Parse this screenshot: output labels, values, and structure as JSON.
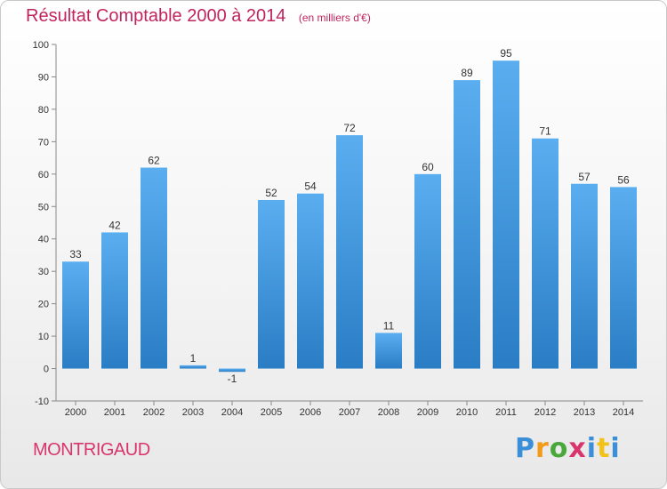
{
  "header": {
    "title": "Résultat Comptable 2000 à 2014",
    "subtitle": "(en milliers d'€)"
  },
  "footer": {
    "commune": "MONTRIGAUD",
    "brand": "Proxiti"
  },
  "colors": {
    "title": "#c0245c",
    "bar_light": "#5aaef0",
    "bar_dark": "#2a7dc4"
  },
  "chart_data": {
    "type": "bar",
    "title": "Résultat Comptable 2000 à 2014",
    "subtitle": "(en milliers d'€)",
    "xlabel": "",
    "ylabel": "",
    "categories": [
      "2000",
      "2001",
      "2002",
      "2003",
      "2004",
      "2005",
      "2006",
      "2007",
      "2008",
      "2009",
      "2010",
      "2011",
      "2012",
      "2013",
      "2014"
    ],
    "values": [
      33,
      42,
      62,
      1,
      -1,
      52,
      54,
      72,
      11,
      60,
      89,
      95,
      71,
      57,
      56
    ],
    "ylim": [
      -10,
      100
    ],
    "yticks": [
      -10,
      0,
      10,
      20,
      30,
      40,
      50,
      60,
      70,
      80,
      90,
      100
    ],
    "grid": false,
    "legend": "none"
  }
}
